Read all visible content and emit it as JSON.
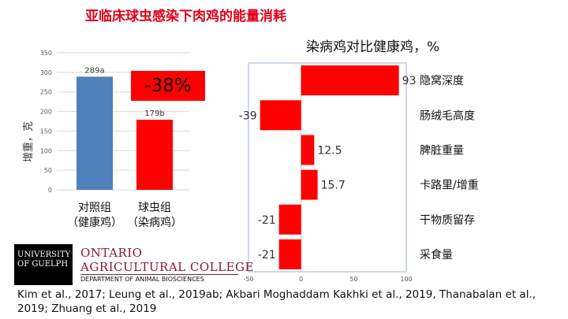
{
  "title": "亚临床球虫感染下肉鸡的能量消耗",
  "chart_data": [
    {
      "type": "bar",
      "ylabel": "增重，克",
      "ylim": [
        0,
        350
      ],
      "yticks": [
        0,
        50,
        100,
        150,
        200,
        250,
        300,
        350
      ],
      "grid": true,
      "categories": [
        [
          "对照组",
          "（健康鸡）"
        ],
        [
          "球虫组",
          "（染病鸡）"
        ]
      ],
      "values": [
        289,
        179
      ],
      "data_labels": [
        "289a",
        "179b"
      ],
      "colors": [
        "#4f81bd",
        "#ff0000"
      ]
    },
    {
      "type": "bar",
      "orientation": "horizontal",
      "title": "染病鸡对比健康鸡，%",
      "xlim": [
        -50,
        100
      ],
      "xticks": [
        -50,
        0,
        50,
        100
      ],
      "categories": [
        "隐窝深度",
        "肠绒毛高度",
        "脾脏重量",
        "卡路里/增重",
        "干物质留存",
        "采食量"
      ],
      "values": [
        93,
        -39,
        12.5,
        15.7,
        -21,
        -21
      ],
      "data_labels": [
        "93",
        "-39",
        "12.5",
        "15.7",
        "-21",
        "-21"
      ],
      "color": "#ff0000"
    }
  ],
  "callout": "-38%",
  "logos": {
    "university": [
      "UNIVERSITY",
      "OF GUELPH"
    ],
    "college_line1": "ONTARIO",
    "college_line2": "AGRICULTURAL COLLEGE",
    "department": "DEPARTMENT OF ANIMAL BIOSCIENCES"
  },
  "citation": "Kim et al., 2017; Leung et al., 2019ab; Akbari Moghaddam Kakhki et al., 2019, Thanabalan et al., 2019; Zhuang et al., 2019"
}
